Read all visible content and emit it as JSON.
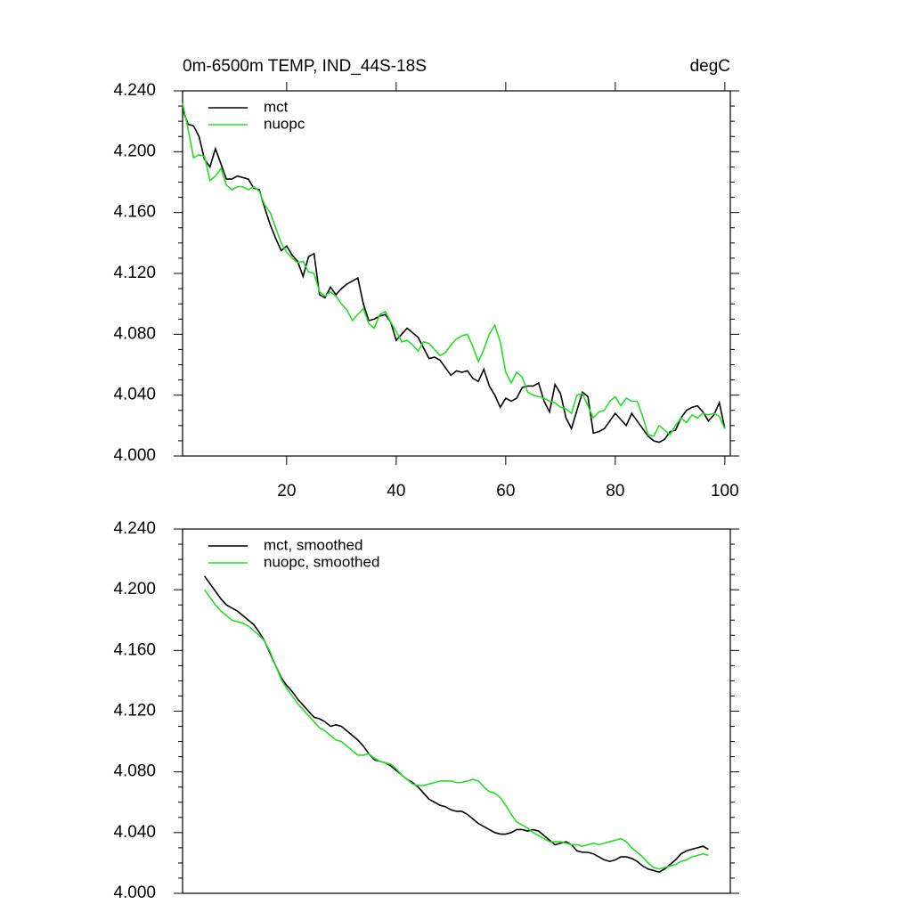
{
  "chart_data": [
    {
      "type": "line",
      "title": "0m-6500m TEMP, IND_44S-18S",
      "units": "degC",
      "x": [
        1,
        2,
        3,
        4,
        5,
        6,
        7,
        8,
        9,
        10,
        11,
        12,
        13,
        14,
        15,
        16,
        17,
        18,
        19,
        20,
        21,
        22,
        23,
        24,
        25,
        26,
        27,
        28,
        29,
        30,
        31,
        32,
        33,
        34,
        35,
        36,
        37,
        38,
        39,
        40,
        41,
        42,
        43,
        44,
        45,
        46,
        47,
        48,
        49,
        50,
        51,
        52,
        53,
        54,
        55,
        56,
        57,
        58,
        59,
        60,
        61,
        62,
        63,
        64,
        65,
        66,
        67,
        68,
        69,
        70,
        71,
        72,
        73,
        74,
        75,
        76,
        77,
        78,
        79,
        80,
        81,
        82,
        83,
        84,
        85,
        86,
        87,
        88,
        89,
        90,
        91,
        92,
        93,
        94,
        95,
        96,
        97,
        98,
        99,
        100
      ],
      "series": [
        {
          "name": "mct",
          "color": "#000000",
          "values": [
            4.228,
            4.218,
            4.217,
            4.21,
            4.195,
            4.19,
            4.202,
            4.192,
            4.182,
            4.182,
            4.184,
            4.183,
            4.182,
            4.176,
            4.175,
            4.163,
            4.152,
            4.143,
            4.135,
            4.138,
            4.132,
            4.128,
            4.118,
            4.131,
            4.133,
            4.106,
            4.104,
            4.111,
            4.106,
            4.11,
            4.113,
            4.115,
            4.117,
            4.1,
            4.089,
            4.09,
            4.092,
            4.093,
            4.088,
            4.076,
            4.08,
            4.084,
            4.081,
            4.078,
            4.071,
            4.064,
            4.065,
            4.063,
            4.058,
            4.053,
            4.056,
            4.055,
            4.056,
            4.051,
            4.049,
            4.057,
            4.046,
            4.04,
            4.032,
            4.038,
            4.036,
            4.038,
            4.045,
            4.046,
            4.046,
            4.048,
            4.036,
            4.029,
            4.047,
            4.041,
            4.025,
            4.018,
            4.03,
            4.042,
            4.039,
            4.015,
            4.016,
            4.018,
            4.023,
            4.028,
            4.024,
            4.02,
            4.028,
            4.023,
            4.018,
            4.013,
            4.01,
            4.009,
            4.011,
            4.016,
            4.017,
            4.025,
            4.03,
            4.032,
            4.033,
            4.029,
            4.023,
            4.027,
            4.035,
            4.018
          ]
        },
        {
          "name": "nuopc",
          "color": "#22e022",
          "values": [
            4.232,
            4.215,
            4.196,
            4.198,
            4.197,
            4.181,
            4.184,
            4.189,
            4.178,
            4.175,
            4.177,
            4.177,
            4.175,
            4.177,
            4.174,
            4.165,
            4.16,
            4.15,
            4.14,
            4.134,
            4.13,
            4.127,
            4.128,
            4.121,
            4.12,
            4.108,
            4.105,
            4.108,
            4.105,
            4.1,
            4.096,
            4.089,
            4.093,
            4.097,
            4.087,
            4.084,
            4.093,
            4.095,
            4.088,
            4.082,
            4.075,
            4.076,
            4.073,
            4.069,
            4.075,
            4.074,
            4.07,
            4.066,
            4.068,
            4.073,
            4.077,
            4.079,
            4.08,
            4.072,
            4.062,
            4.07,
            4.08,
            4.086,
            4.075,
            4.055,
            4.048,
            4.055,
            4.052,
            4.042,
            4.04,
            4.039,
            4.038,
            4.036,
            4.035,
            4.032,
            4.031,
            4.028,
            4.04,
            4.041,
            4.033,
            4.025,
            4.029,
            4.03,
            4.036,
            4.039,
            4.033,
            4.038,
            4.036,
            4.036,
            4.026,
            4.014,
            4.013,
            4.02,
            4.017,
            4.014,
            4.02,
            4.025,
            4.022,
            4.027,
            4.025,
            4.028,
            4.027,
            4.028,
            4.026,
            4.018
          ]
        }
      ],
      "xlim": [
        1,
        101
      ],
      "xticks": [
        20,
        40,
        60,
        80,
        100
      ],
      "ylim": [
        4.0,
        4.24
      ],
      "yticks": [
        {
          "value": 4.0,
          "label": "4.000"
        },
        {
          "value": 4.04,
          "label": "4.040"
        },
        {
          "value": 4.08,
          "label": "4.080"
        },
        {
          "value": 4.12,
          "label": "4.120"
        },
        {
          "value": 4.16,
          "label": "4.160"
        },
        {
          "value": 4.2,
          "label": "4.200"
        },
        {
          "value": 4.24,
          "label": "4.240"
        }
      ]
    },
    {
      "type": "line",
      "x": [
        5,
        6,
        7,
        8,
        9,
        10,
        11,
        12,
        13,
        14,
        15,
        16,
        17,
        18,
        19,
        20,
        21,
        22,
        23,
        24,
        25,
        26,
        27,
        28,
        29,
        30,
        31,
        32,
        33,
        34,
        35,
        36,
        37,
        38,
        39,
        40,
        41,
        42,
        43,
        44,
        45,
        46,
        47,
        48,
        49,
        50,
        51,
        52,
        53,
        54,
        55,
        56,
        57,
        58,
        59,
        60,
        61,
        62,
        63,
        64,
        65,
        66,
        67,
        68,
        69,
        70,
        71,
        72,
        73,
        74,
        75,
        76,
        77,
        78,
        79,
        80,
        81,
        82,
        83,
        84,
        85,
        86,
        87,
        88,
        89,
        90,
        91,
        92,
        93,
        94,
        95,
        96,
        97
      ],
      "series": [
        {
          "name": "mct, smoothed",
          "color": "#000000",
          "values": [
            4.209,
            4.204,
            4.199,
            4.194,
            4.19,
            4.188,
            4.186,
            4.183,
            4.18,
            4.177,
            4.172,
            4.166,
            4.158,
            4.15,
            4.142,
            4.137,
            4.133,
            4.128,
            4.124,
            4.12,
            4.116,
            4.115,
            4.113,
            4.11,
            4.111,
            4.11,
            4.107,
            4.104,
            4.101,
            4.097,
            4.092,
            4.088,
            4.087,
            4.086,
            4.084,
            4.081,
            4.078,
            4.075,
            4.073,
            4.07,
            4.066,
            4.062,
            4.06,
            4.058,
            4.057,
            4.055,
            4.054,
            4.054,
            4.052,
            4.049,
            4.046,
            4.044,
            4.042,
            4.04,
            4.039,
            4.039,
            4.04,
            4.042,
            4.042,
            4.041,
            4.042,
            4.041,
            4.038,
            4.035,
            4.032,
            4.033,
            4.034,
            4.032,
            4.028,
            4.027,
            4.027,
            4.026,
            4.024,
            4.022,
            4.021,
            4.022,
            4.024,
            4.024,
            4.023,
            4.021,
            4.018,
            4.016,
            4.015,
            4.014,
            4.016,
            4.019,
            4.022,
            4.026,
            4.028,
            4.029,
            4.03,
            4.031,
            4.029
          ]
        },
        {
          "name": "nuopc, smoothed",
          "color": "#22e022",
          "values": [
            4.2,
            4.195,
            4.19,
            4.186,
            4.183,
            4.18,
            4.179,
            4.178,
            4.176,
            4.173,
            4.17,
            4.166,
            4.159,
            4.15,
            4.141,
            4.135,
            4.13,
            4.125,
            4.121,
            4.117,
            4.113,
            4.109,
            4.107,
            4.104,
            4.101,
            4.1,
            4.097,
            4.094,
            4.091,
            4.091,
            4.092,
            4.089,
            4.087,
            4.086,
            4.085,
            4.082,
            4.078,
            4.075,
            4.072,
            4.071,
            4.071,
            4.072,
            4.073,
            4.074,
            4.074,
            4.074,
            4.073,
            4.073,
            4.074,
            4.075,
            4.074,
            4.07,
            4.067,
            4.066,
            4.063,
            4.058,
            4.052,
            4.047,
            4.045,
            4.043,
            4.04,
            4.038,
            4.036,
            4.034,
            4.034,
            4.034,
            4.033,
            4.032,
            4.032,
            4.031,
            4.032,
            4.033,
            4.032,
            4.033,
            4.034,
            4.035,
            4.036,
            4.034,
            4.03,
            4.027,
            4.024,
            4.02,
            4.017,
            4.016,
            4.017,
            4.018,
            4.019,
            4.021,
            4.022,
            4.024,
            4.025,
            4.026,
            4.025
          ]
        }
      ],
      "xlim": [
        1,
        101
      ],
      "ylim": [
        4.0,
        4.24
      ],
      "yticks": [
        {
          "value": 4.0,
          "label": "4.000"
        },
        {
          "value": 4.04,
          "label": "4.040"
        },
        {
          "value": 4.08,
          "label": "4.080"
        },
        {
          "value": 4.12,
          "label": "4.120"
        },
        {
          "value": 4.16,
          "label": "4.160"
        },
        {
          "value": 4.2,
          "label": "4.200"
        },
        {
          "value": 4.24,
          "label": "4.240"
        }
      ]
    }
  ]
}
